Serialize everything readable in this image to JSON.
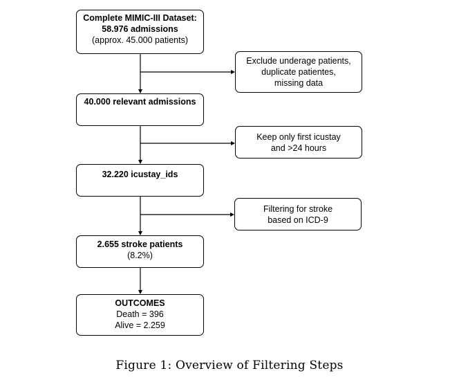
{
  "flow": {
    "dataset": {
      "title": "Complete MIMIC-III Dataset:",
      "count": "58.976 admissions",
      "note": "(approx. 45.000 patients)"
    },
    "relevant": {
      "title": "40.000 relevant admissions"
    },
    "icustay": {
      "title": "32.220 icustay_ids"
    },
    "stroke": {
      "title": "2.655 stroke patients",
      "note": "(8.2%)"
    },
    "outcomes": {
      "title": "OUTCOMES",
      "death": "Death = 396",
      "alive": "Alive = 2.259"
    }
  },
  "filters": {
    "exclude": {
      "line1": "Exclude underage patients,",
      "line2": "duplicate patientes,",
      "line3": "missing data"
    },
    "keep_first": {
      "line1": "Keep only first icustay",
      "line2": "and >24 hours"
    },
    "stroke_filter": {
      "line1": "Filtering for stroke",
      "line2": "based on ICD-9"
    }
  },
  "caption": "Figure 1: Overview of Filtering Steps"
}
